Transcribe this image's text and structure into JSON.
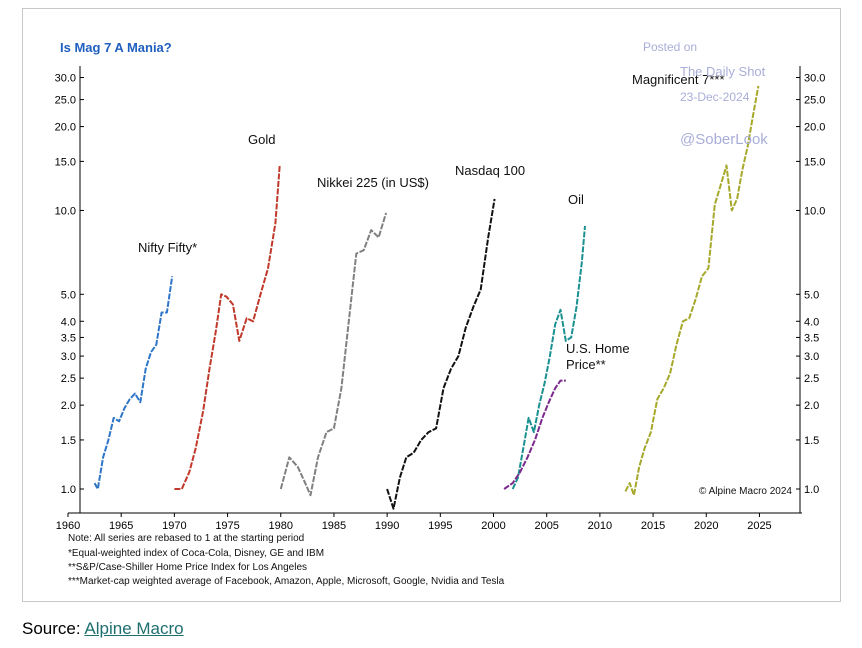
{
  "chart_data": {
    "type": "line",
    "title": "Is Mag 7 A Mania?",
    "y_scale": "log",
    "ylim": [
      0.82,
      33
    ],
    "xlim": [
      1960,
      2029
    ],
    "x_ticks": [
      1960,
      1965,
      1970,
      1975,
      1980,
      1985,
      1990,
      1995,
      2000,
      2005,
      2010,
      2015,
      2020,
      2025
    ],
    "y_ticks": [
      1.0,
      1.5,
      2.0,
      2.5,
      3.0,
      3.5,
      4.0,
      5.0,
      10.0,
      15.0,
      20.0,
      25.0,
      30.0
    ],
    "grid": false,
    "series": [
      {
        "name": "Nifty Fifty*",
        "color": "#2e75c8",
        "x": [
          1962.5,
          1962.8,
          1963.3,
          1963.8,
          1964.3,
          1964.8,
          1965.3,
          1965.8,
          1966.3,
          1966.8,
          1967.3,
          1967.8,
          1968.3,
          1968.8,
          1969.3,
          1969.8
        ],
        "y": [
          1.05,
          1.0,
          1.3,
          1.5,
          1.8,
          1.75,
          1.95,
          2.1,
          2.2,
          2.05,
          2.7,
          3.1,
          3.3,
          4.3,
          4.3,
          5.8
        ]
      },
      {
        "name": "Gold",
        "color": "#c0392b",
        "x": [
          1970.0,
          1970.7,
          1971.4,
          1972.0,
          1972.7,
          1973.3,
          1973.9,
          1974.4,
          1974.9,
          1975.5,
          1976.1,
          1976.8,
          1977.4,
          1978.1,
          1978.8,
          1979.5,
          1979.9
        ],
        "y": [
          1.0,
          1.0,
          1.15,
          1.4,
          1.9,
          2.7,
          3.7,
          5.0,
          4.9,
          4.6,
          3.4,
          4.1,
          4.0,
          5.0,
          6.2,
          9.0,
          14.5
        ]
      },
      {
        "name": "Nikkei 225 (in US$)",
        "color": "#808080",
        "x": [
          1980.0,
          1980.8,
          1981.6,
          1982.3,
          1982.8,
          1983.5,
          1984.3,
          1985.0,
          1985.7,
          1986.4,
          1987.1,
          1987.8,
          1988.5,
          1989.2,
          1989.9
        ],
        "y": [
          1.0,
          1.3,
          1.2,
          1.05,
          0.95,
          1.3,
          1.6,
          1.65,
          2.3,
          4.0,
          7.0,
          7.2,
          8.5,
          8.0,
          9.8
        ]
      },
      {
        "name": "Nasdaq 100",
        "color": "#111111",
        "x": [
          1990.0,
          1990.6,
          1991.2,
          1991.8,
          1992.5,
          1993.2,
          1993.9,
          1994.6,
          1995.3,
          1996.0,
          1996.7,
          1997.4,
          1998.1,
          1998.8,
          1999.5,
          2000.1
        ],
        "y": [
          1.0,
          0.85,
          1.1,
          1.3,
          1.35,
          1.5,
          1.6,
          1.65,
          2.3,
          2.7,
          3.0,
          3.8,
          4.5,
          5.2,
          8.0,
          11.0
        ]
      },
      {
        "name": "Oil",
        "color": "#1a9090",
        "x": [
          2001.8,
          2002.3,
          2002.8,
          2003.3,
          2003.8,
          2004.3,
          2004.8,
          2005.3,
          2005.8,
          2006.3,
          2006.8,
          2007.3,
          2007.8,
          2008.3,
          2008.6
        ],
        "y": [
          1.0,
          1.1,
          1.4,
          1.8,
          1.6,
          2.0,
          2.4,
          3.0,
          3.9,
          4.4,
          3.4,
          3.5,
          4.5,
          6.5,
          8.8
        ]
      },
      {
        "name": "U.S. Home Price**",
        "color": "#7a2a8c",
        "x": [
          2001.0,
          2001.8,
          2002.5,
          2003.2,
          2003.9,
          2004.6,
          2005.2,
          2005.8,
          2006.3,
          2006.8
        ],
        "y": [
          1.0,
          1.05,
          1.15,
          1.3,
          1.5,
          1.8,
          2.05,
          2.3,
          2.45,
          2.45
        ]
      },
      {
        "name": "Magnificent 7***",
        "color": "#a5a82a",
        "x": [
          2012.4,
          2012.8,
          2013.2,
          2013.7,
          2014.2,
          2014.8,
          2015.4,
          2016.0,
          2016.6,
          2017.2,
          2017.8,
          2018.4,
          2019.0,
          2019.6,
          2020.2,
          2020.8,
          2021.4,
          2021.9,
          2022.4,
          2022.9,
          2023.4,
          2023.9,
          2024.4,
          2024.9
        ],
        "y": [
          0.98,
          1.05,
          0.95,
          1.2,
          1.4,
          1.6,
          2.1,
          2.3,
          2.6,
          3.3,
          4.0,
          4.1,
          4.8,
          5.8,
          6.2,
          10.5,
          12.5,
          14.5,
          10.0,
          11.0,
          14.0,
          17.0,
          22.0,
          28.0
        ]
      }
    ],
    "annotations": [
      {
        "text": "Nifty Fifty*",
        "anchor": "nifty"
      },
      {
        "text": "Gold",
        "anchor": "gold"
      },
      {
        "text": "Nikkei 225 (in US$)",
        "anchor": "nikkei"
      },
      {
        "text": "Nasdaq 100",
        "anchor": "nasdaq"
      },
      {
        "text": "Oil",
        "anchor": "oil"
      },
      {
        "text": "U.S. Home",
        "anchor": "home1"
      },
      {
        "text": "Price**",
        "anchor": "home2"
      },
      {
        "text": "Magnificent 7***",
        "anchor": "mag7"
      }
    ],
    "copyright": "© Alpine Macro 2024",
    "notes": [
      "Note: All series are rebased to 1 at the starting period",
      "*Equal-weighted index of Coca-Cola, Disney, GE and IBM",
      "**S&P/Case-Shiller Home Price Index for Los Angeles",
      "***Market-cap weighted average of Facebook, Amazon, Apple, Microsoft, Google, Nvidia and Tesla"
    ]
  },
  "watermark": {
    "line1": "Posted on",
    "line2": "The Daily Shot",
    "line3": "23-Dec-2024",
    "line4": "@SoberLook",
    "color": "#a9aed8"
  },
  "source": {
    "label": "Source:",
    "link_text": "Alpine Macro",
    "link_color": "#1f6f6f"
  },
  "colors": {
    "title": "#1f5fbf",
    "axis": "#000000"
  }
}
